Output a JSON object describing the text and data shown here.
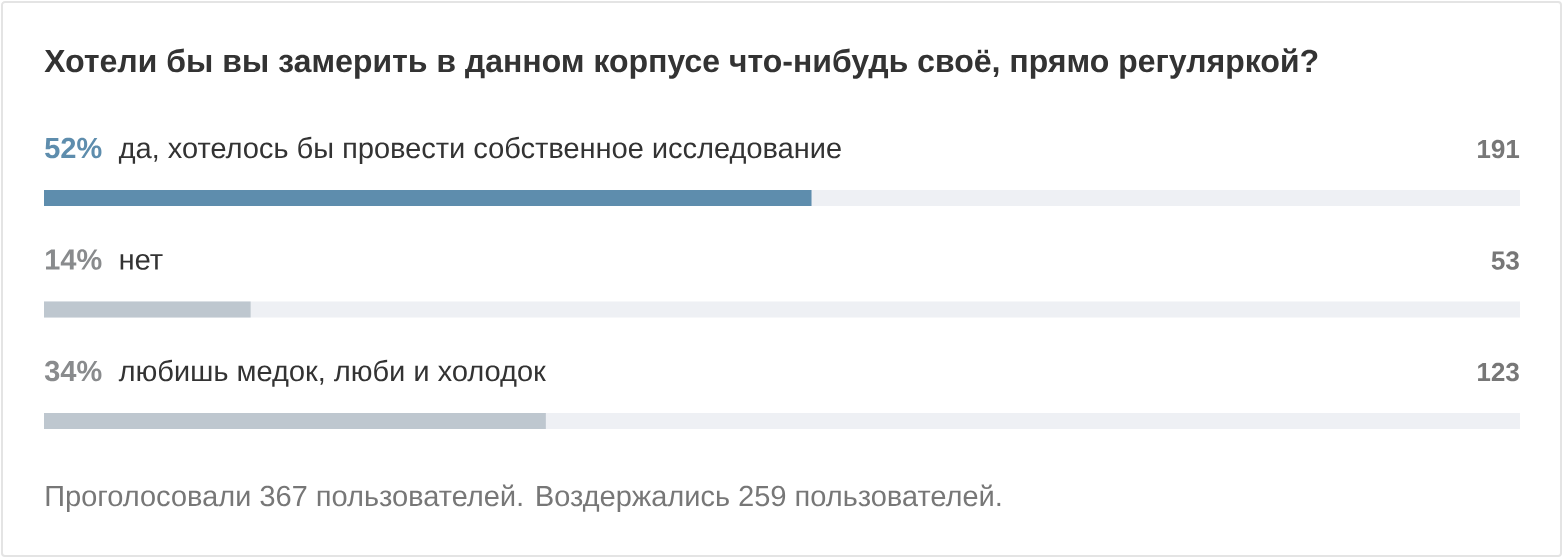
{
  "chart_data": {
    "type": "bar",
    "orientation": "horizontal",
    "title": "Хотели бы вы замерить в данном корпусе что-нибудь своё, прямо регуляркой?",
    "categories": [
      "да, хотелось бы провести собственное исследование",
      "нет",
      "любишь медок, люби и холодок"
    ],
    "values": [
      52,
      14,
      34
    ],
    "value_labels": [
      "52%",
      "14%",
      "34%"
    ],
    "colors": [
      "#5e8dad",
      "#bec7cf",
      "#bec7cf"
    ],
    "xlim": [
      0,
      100
    ],
    "annotations": [
      "191",
      "53",
      "123",
      "Проголосовали 367 пользователей. Воздержались 259 пользователей."
    ]
  }
}
